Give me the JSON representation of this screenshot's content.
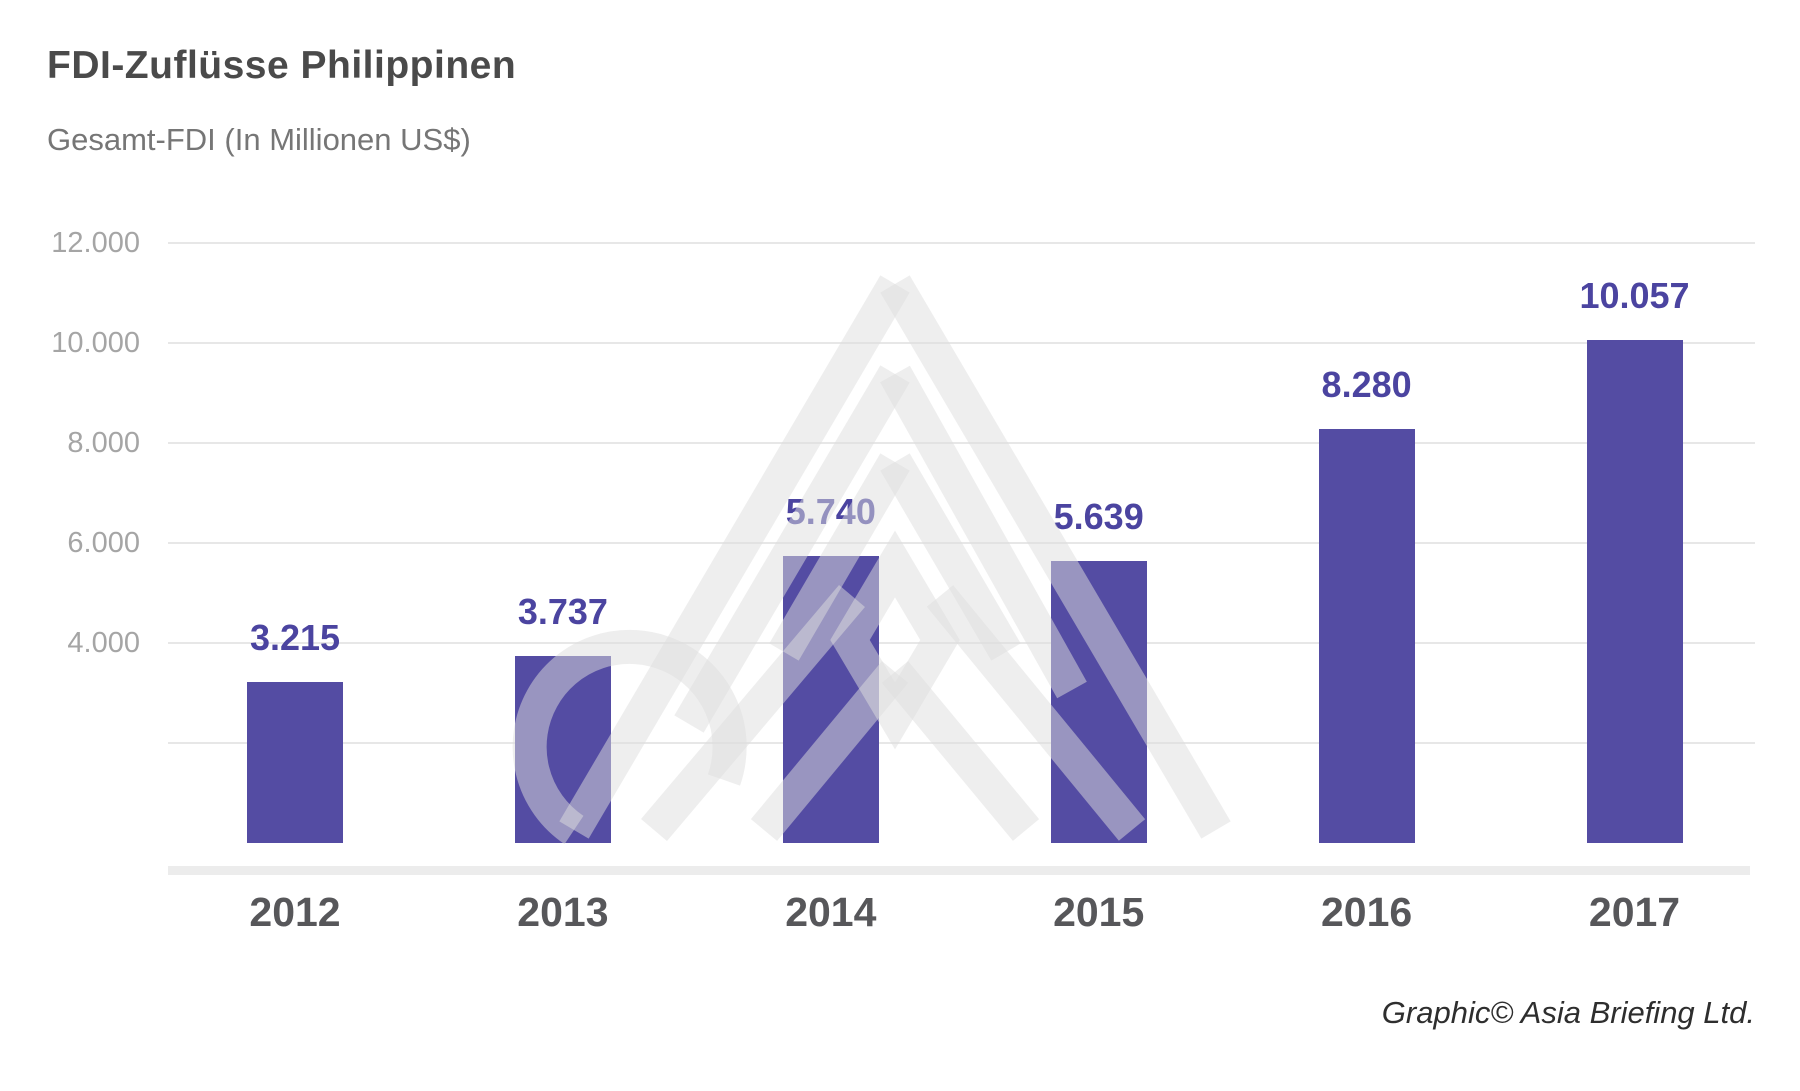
{
  "header": {
    "title": "FDI-Zuflüsse Philippinen",
    "subtitle": "Gesamt-FDI (In Millionen US$)"
  },
  "chart_data": {
    "type": "bar",
    "title": "FDI-Zuflüsse Philippinen",
    "subtitle": "Gesamt-FDI (In Millionen US$)",
    "categories": [
      "2012",
      "2013",
      "2014",
      "2015",
      "2016",
      "2017"
    ],
    "values": [
      3215,
      3737,
      5740,
      5639,
      8280,
      10057
    ],
    "value_labels": [
      "3.215",
      "3.737",
      "5.740",
      "5.639",
      "8.280",
      "10.057"
    ],
    "xlabel": "",
    "ylabel": "",
    "ylim": [
      0,
      12000
    ],
    "ytick_values": [
      12000,
      10000,
      8000,
      6000,
      4000
    ],
    "ytick_labels": [
      "12.000",
      "10.000",
      "8.000",
      "6.000",
      "4.000"
    ],
    "gridline_values": [
      12000,
      10000,
      8000,
      6000,
      4000,
      2000
    ],
    "grid": true,
    "legend": false,
    "bar_color": "#544CA3",
    "value_label_color": "#4B44A0",
    "ytick_color": "#A5A5A5",
    "category_label_color": "#57575A",
    "gridline_color": "#E7E7E7",
    "watermark_icon": "asia-briefing-pyramid-logo"
  },
  "footer": {
    "credit": "Graphic© Asia Briefing Ltd."
  }
}
